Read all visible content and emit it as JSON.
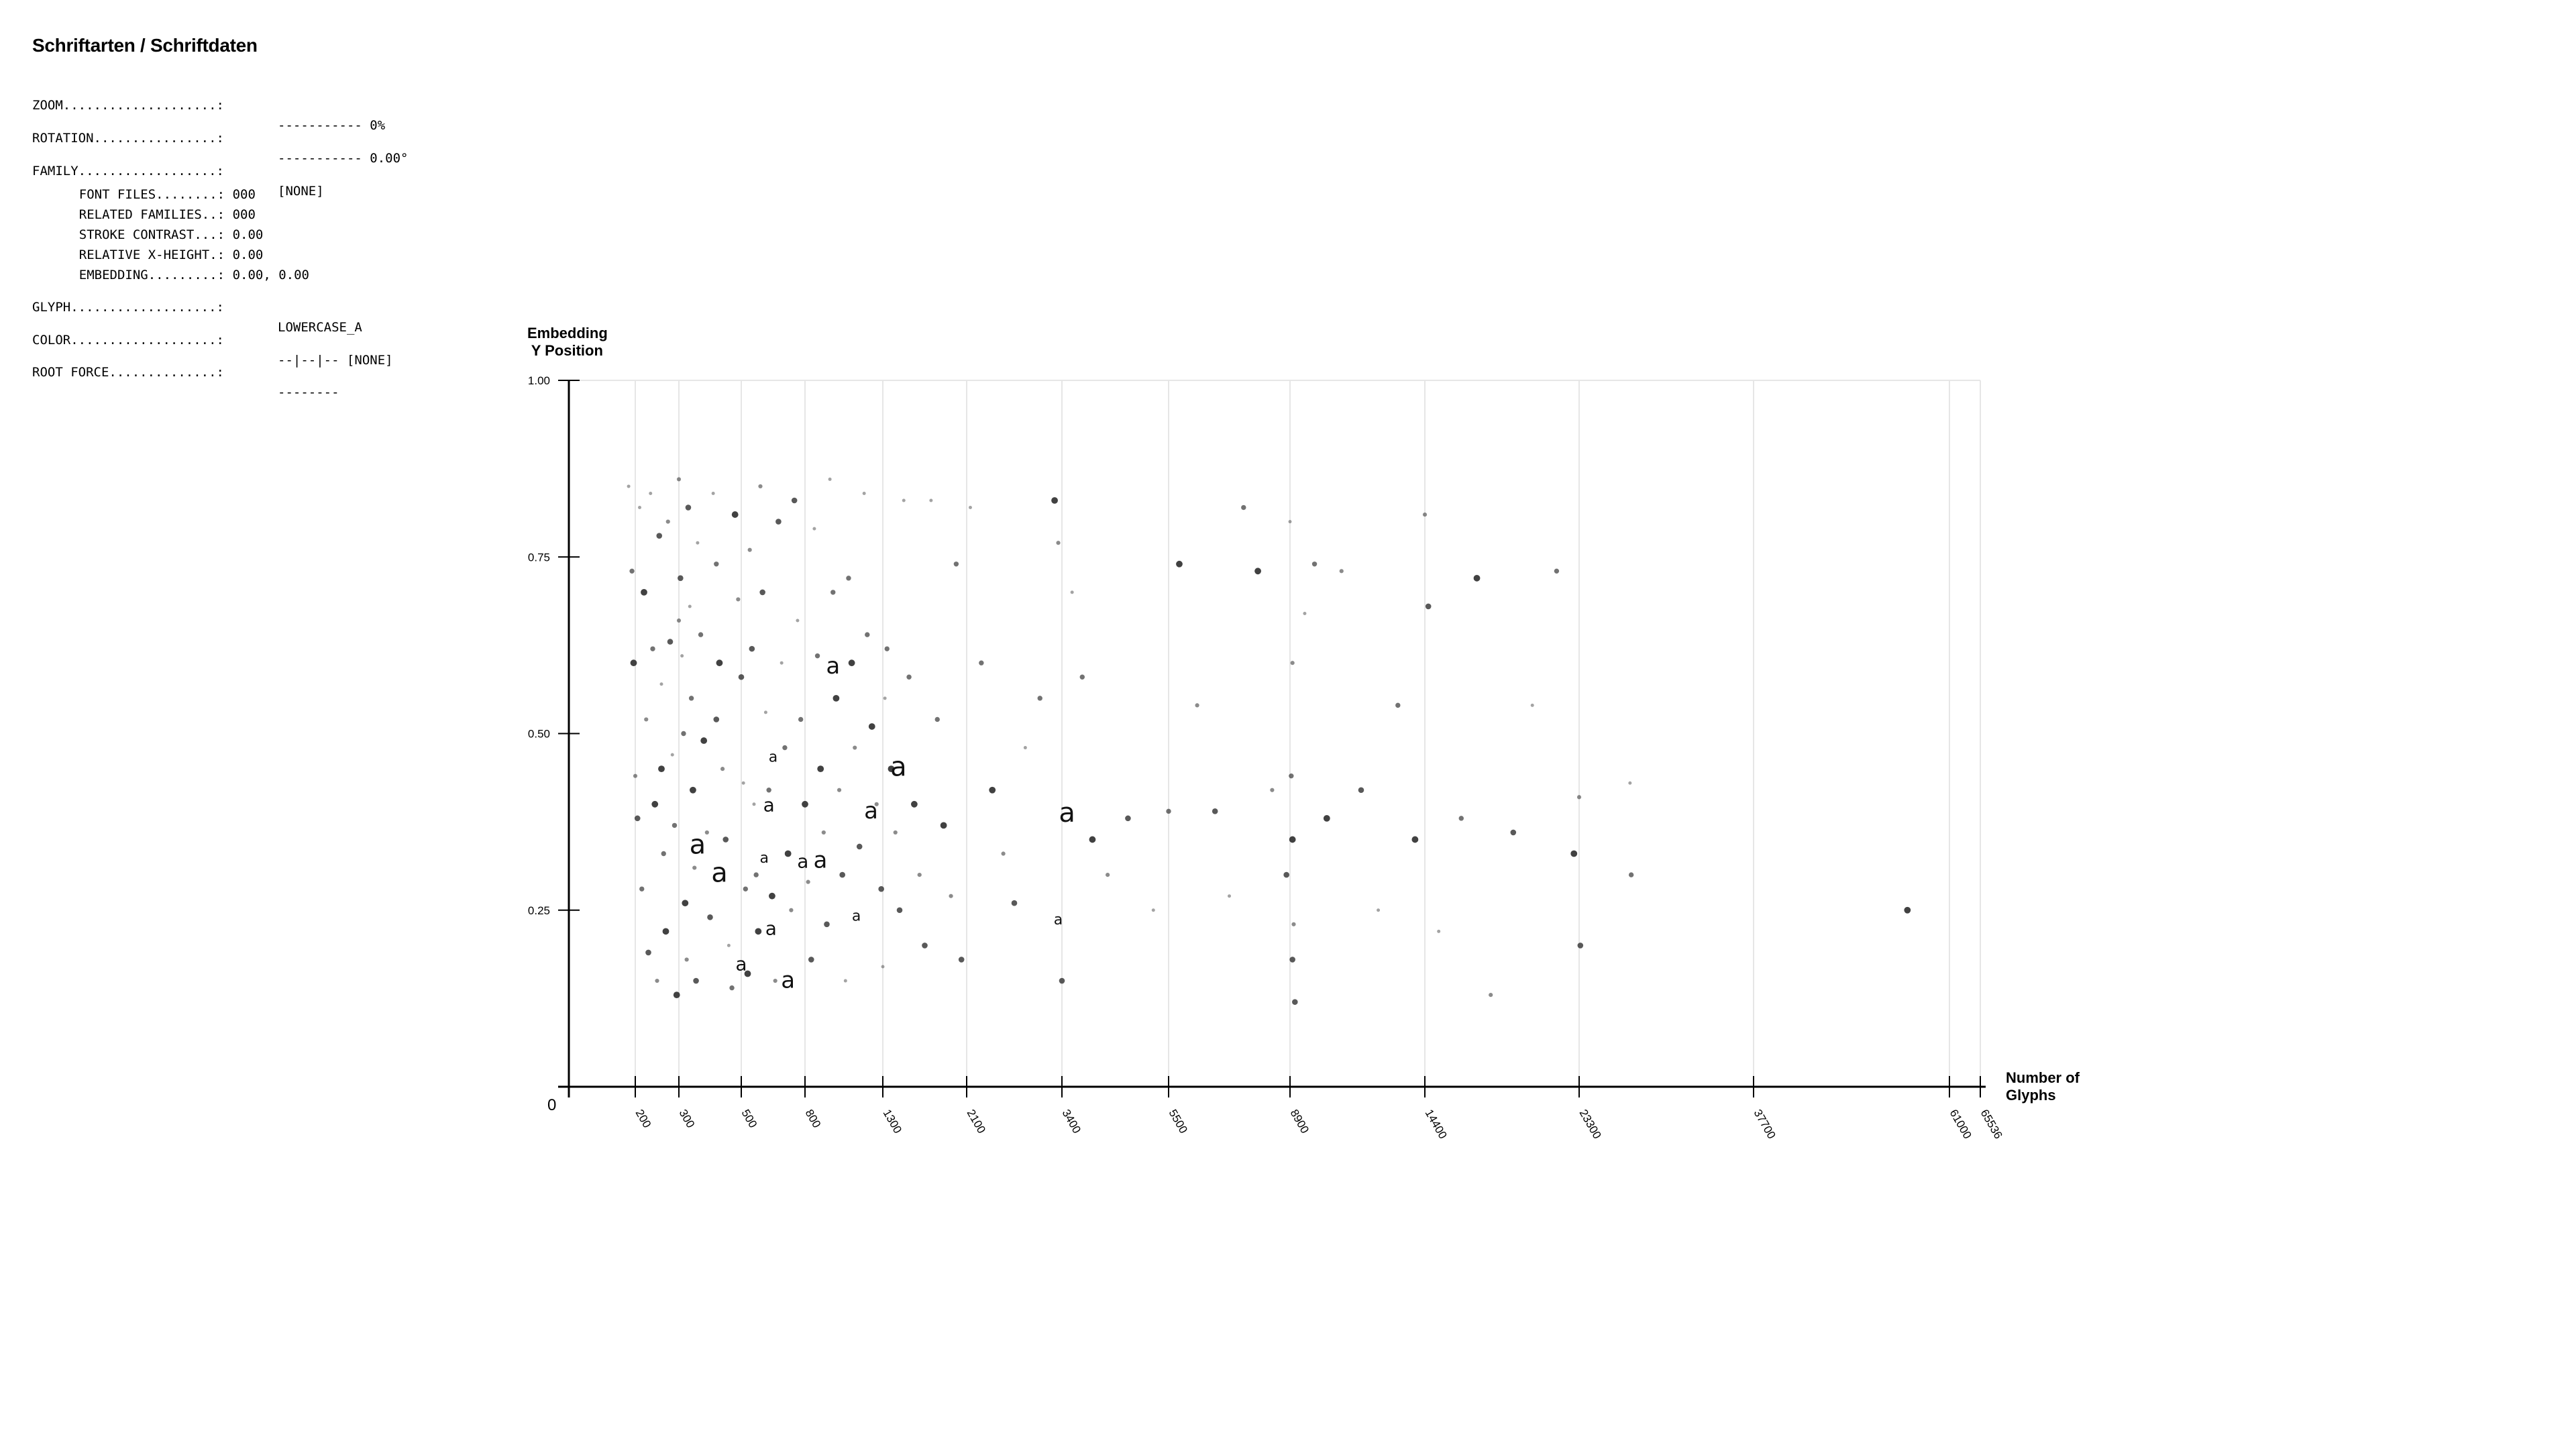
{
  "panel": {
    "title": "Schriftarten / Schriftdaten",
    "zoom": {
      "label": "ZOOM....................:",
      "value": "----------- 0%"
    },
    "rotation": {
      "label": "ROTATION................:",
      "value": "----------- 0.00°"
    },
    "family": {
      "label": "FAMILY..................:",
      "value": "[NONE]"
    },
    "font_files": {
      "label": "FONT FILES........:",
      "value": "000"
    },
    "related_families": {
      "label": "RELATED FAMILIES..:",
      "value": "000"
    },
    "stroke_contrast": {
      "label": "STROKE CONTRAST...:",
      "value": "0.00"
    },
    "relative_x_height": {
      "label": "RELATIVE X-HEIGHT.:",
      "value": "0.00"
    },
    "embedding": {
      "label": "EMBEDDING.........:",
      "value": "0.00, 0.00"
    },
    "glyph": {
      "label": "GLYPH...................:",
      "value": "LOWERCASE_A"
    },
    "color": {
      "label": "COLOR...................:",
      "value": "--|--|-- [NONE]"
    },
    "root_force": {
      "label": "ROOT FORCE..............:",
      "value": "--------"
    }
  },
  "chart_data": {
    "type": "scatter",
    "marker": "a",
    "xlabel_line1": "Number of",
    "xlabel_line2": "Glyphs",
    "ylabel_line1": "Embedding",
    "ylabel_line2": " Y Position",
    "origin_label": "0",
    "xticks": [
      200,
      300,
      500,
      800,
      1300,
      2100,
      3400,
      5500,
      8900,
      14400,
      23300,
      37700,
      61000,
      65536
    ],
    "xtick_labels": [
      "200",
      "300",
      "500",
      "800",
      "1300",
      "2100",
      "3400",
      "5500",
      "8900",
      "14400",
      "23300",
      "37700",
      "61000",
      "65536"
    ],
    "yticks": [
      0.25,
      0.5,
      0.75,
      1.0
    ],
    "ytick_labels": [
      "0.25",
      "0.50",
      "0.75",
      "1.00"
    ],
    "xlim": [
      0,
      65536
    ],
    "ylim": [
      0,
      1.0
    ],
    "grid": "vertical",
    "point_color": "#333333",
    "grid_color": "#e6e6e6",
    "large_points": [
      [
        608,
        0.317
      ],
      [
        790,
        0.31
      ],
      [
        830,
        0.31
      ],
      [
        430,
        0.29
      ],
      [
        650,
        0.46
      ],
      [
        630,
        0.39
      ],
      [
        1225,
        0.38
      ],
      [
        1450,
        0.44
      ],
      [
        1130,
        0.235
      ],
      [
        500,
        0.165
      ],
      [
        720,
        0.14
      ],
      [
        3500,
        0.375
      ],
      [
        3350,
        0.23
      ],
      [
        640,
        0.215
      ],
      [
        980,
        0.585
      ],
      [
        360,
        0.33
      ]
    ],
    "points": [
      [
        180,
        0.85
      ],
      [
        190,
        0.73
      ],
      [
        195,
        0.6
      ],
      [
        200,
        0.44
      ],
      [
        205,
        0.38
      ],
      [
        210,
        0.82
      ],
      [
        215,
        0.28
      ],
      [
        220,
        0.7
      ],
      [
        225,
        0.52
      ],
      [
        230,
        0.19
      ],
      [
        235,
        0.84
      ],
      [
        240,
        0.62
      ],
      [
        245,
        0.4
      ],
      [
        250,
        0.15
      ],
      [
        255,
        0.78
      ],
      [
        260,
        0.57
      ],
      [
        265,
        0.33
      ],
      [
        270,
        0.22
      ],
      [
        275,
        0.8
      ],
      [
        280,
        0.63
      ],
      [
        285,
        0.47
      ],
      [
        290,
        0.37
      ],
      [
        295,
        0.13
      ],
      [
        300,
        0.86
      ],
      [
        305,
        0.72
      ],
      [
        310,
        0.61
      ],
      [
        315,
        0.5
      ],
      [
        320,
        0.26
      ],
      [
        325,
        0.18
      ],
      [
        330,
        0.82
      ],
      [
        335,
        0.68
      ],
      [
        340,
        0.55
      ],
      [
        345,
        0.42
      ],
      [
        350,
        0.31
      ],
      [
        355,
        0.15
      ],
      [
        360,
        0.77
      ],
      [
        370,
        0.64
      ],
      [
        380,
        0.49
      ],
      [
        390,
        0.36
      ],
      [
        400,
        0.24
      ],
      [
        410,
        0.84
      ],
      [
        420,
        0.74
      ],
      [
        430,
        0.6
      ],
      [
        440,
        0.45
      ],
      [
        450,
        0.35
      ],
      [
        460,
        0.2
      ],
      [
        470,
        0.14
      ],
      [
        480,
        0.81
      ],
      [
        490,
        0.69
      ],
      [
        500,
        0.58
      ],
      [
        510,
        0.43
      ],
      [
        520,
        0.28
      ],
      [
        530,
        0.16
      ],
      [
        540,
        0.76
      ],
      [
        550,
        0.62
      ],
      [
        560,
        0.4
      ],
      [
        570,
        0.3
      ],
      [
        580,
        0.22
      ],
      [
        590,
        0.85
      ],
      [
        600,
        0.7
      ],
      [
        615,
        0.53
      ],
      [
        630,
        0.42
      ],
      [
        645,
        0.27
      ],
      [
        660,
        0.15
      ],
      [
        675,
        0.8
      ],
      [
        690,
        0.6
      ],
      [
        705,
        0.48
      ],
      [
        720,
        0.33
      ],
      [
        735,
        0.25
      ],
      [
        750,
        0.83
      ],
      [
        765,
        0.66
      ],
      [
        780,
        0.52
      ],
      [
        800,
        0.4
      ],
      [
        820,
        0.29
      ],
      [
        840,
        0.18
      ],
      [
        860,
        0.79
      ],
      [
        880,
        0.61
      ],
      [
        900,
        0.45
      ],
      [
        920,
        0.36
      ],
      [
        940,
        0.23
      ],
      [
        960,
        0.86
      ],
      [
        980,
        0.7
      ],
      [
        1000,
        0.55
      ],
      [
        1020,
        0.42
      ],
      [
        1040,
        0.3
      ],
      [
        1060,
        0.15
      ],
      [
        1080,
        0.72
      ],
      [
        1100,
        0.6
      ],
      [
        1120,
        0.48
      ],
      [
        1150,
        0.34
      ],
      [
        1180,
        0.84
      ],
      [
        1200,
        0.64
      ],
      [
        1230,
        0.51
      ],
      [
        1260,
        0.4
      ],
      [
        1290,
        0.28
      ],
      [
        1300,
        0.17
      ],
      [
        1340,
        0.62
      ],
      [
        1380,
        0.45
      ],
      [
        1420,
        0.36
      ],
      [
        1460,
        0.25
      ],
      [
        1500,
        0.83
      ],
      [
        1550,
        0.58
      ],
      [
        1600,
        0.4
      ],
      [
        1650,
        0.3
      ],
      [
        1700,
        0.2
      ],
      [
        1760,
        0.83
      ],
      [
        1820,
        0.52
      ],
      [
        1880,
        0.37
      ],
      [
        1950,
        0.27
      ],
      [
        2050,
        0.18
      ],
      [
        2150,
        0.82
      ],
      [
        2300,
        0.6
      ],
      [
        2450,
        0.42
      ],
      [
        2600,
        0.33
      ],
      [
        2750,
        0.26
      ],
      [
        2900,
        0.48
      ],
      [
        3100,
        0.55
      ],
      [
        3300,
        0.83
      ],
      [
        3350,
        0.77
      ],
      [
        3400,
        0.15
      ],
      [
        3600,
        0.7
      ],
      [
        3800,
        0.58
      ],
      [
        4000,
        0.35
      ],
      [
        4300,
        0.3
      ],
      [
        4700,
        0.38
      ],
      [
        5200,
        0.25
      ],
      [
        5500,
        0.39
      ],
      [
        5800,
        0.74
      ],
      [
        6300,
        0.54
      ],
      [
        6800,
        0.39
      ],
      [
        7200,
        0.27
      ],
      [
        7600,
        0.82
      ],
      [
        8000,
        0.73
      ],
      [
        8400,
        0.42
      ],
      [
        8800,
        0.3
      ],
      [
        8900,
        0.8
      ],
      [
        8950,
        0.44
      ],
      [
        9000,
        0.35
      ],
      [
        9050,
        0.23
      ],
      [
        9100,
        0.12
      ],
      [
        9500,
        0.67
      ],
      [
        9900,
        0.74
      ],
      [
        10400,
        0.38
      ],
      [
        11000,
        0.73
      ],
      [
        11800,
        0.42
      ],
      [
        12500,
        0.25
      ],
      [
        13300,
        0.54
      ],
      [
        14000,
        0.35
      ],
      [
        14400,
        0.81
      ],
      [
        14600,
        0.68
      ],
      [
        15200,
        0.22
      ],
      [
        16500,
        0.38
      ],
      [
        17400,
        0.72
      ],
      [
        18200,
        0.13
      ],
      [
        19500,
        0.36
      ],
      [
        20600,
        0.54
      ],
      [
        22000,
        0.73
      ],
      [
        23000,
        0.33
      ],
      [
        23300,
        0.41
      ],
      [
        23400,
        0.2
      ],
      [
        27500,
        0.43
      ],
      [
        27600,
        0.3
      ],
      [
        56000,
        0.25
      ],
      [
        9000,
        0.6
      ],
      [
        9000,
        0.18
      ],
      [
        1320,
        0.55
      ],
      [
        2000,
        0.74
      ],
      [
        260,
        0.45
      ],
      [
        300,
        0.66
      ],
      [
        420,
        0.52
      ]
    ]
  }
}
